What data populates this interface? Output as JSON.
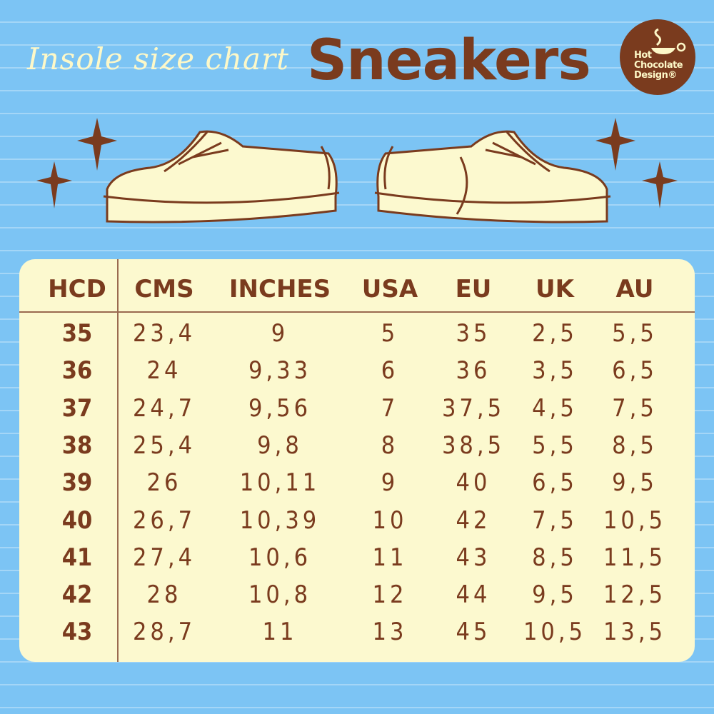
{
  "header": {
    "subtitle": "Insole size chart",
    "title": "Sneakers",
    "logo_text": [
      "Hot",
      "Chocolate",
      "Design®"
    ]
  },
  "colors": {
    "background": "#7cc4f4",
    "brown": "#7a3b1e",
    "cream": "#fcf9cf"
  },
  "table": {
    "columns": [
      "HCD",
      "CMS",
      "INCHES",
      "USA",
      "EU",
      "UK",
      "AU"
    ],
    "rows": [
      [
        "35",
        "23,4",
        "9",
        "5",
        "35",
        "2,5",
        "5,5"
      ],
      [
        "36",
        "24",
        "9,33",
        "6",
        "36",
        "3,5",
        "6,5"
      ],
      [
        "37",
        "24,7",
        "9,56",
        "7",
        "37,5",
        "4,5",
        "7,5"
      ],
      [
        "38",
        "25,4",
        "9,8",
        "8",
        "38,5",
        "5,5",
        "8,5"
      ],
      [
        "39",
        "26",
        "10,11",
        "9",
        "40",
        "6,5",
        "9,5"
      ],
      [
        "40",
        "26,7",
        "10,39",
        "10",
        "42",
        "7,5",
        "10,5"
      ],
      [
        "41",
        "27,4",
        "10,6",
        "11",
        "43",
        "8,5",
        "11,5"
      ],
      [
        "42",
        "28",
        "10,8",
        "12",
        "44",
        "9,5",
        "12,5"
      ],
      [
        "43",
        "28,7",
        "11",
        "13",
        "45",
        "10,5",
        "13,5"
      ]
    ]
  }
}
